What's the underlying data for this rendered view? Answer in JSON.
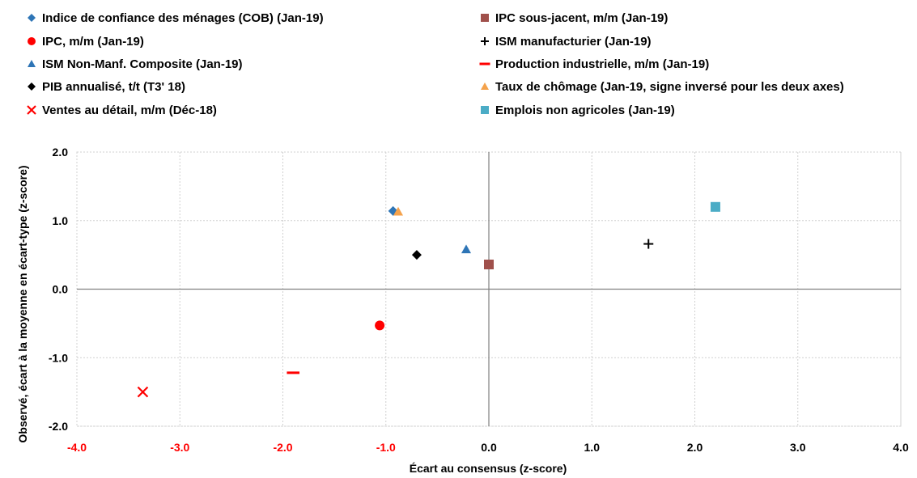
{
  "chart_data": {
    "type": "scatter",
    "xlabel": "Écart au consensus (z-score)",
    "ylabel": "Observé, écart à la moyenne en écart-type (z-score)",
    "xlim": [
      -4.0,
      4.0
    ],
    "ylim": [
      -2.0,
      2.0
    ],
    "x_ticks": [
      "-4.0",
      "-3.0",
      "-2.0",
      "-1.0",
      "0.0",
      "1.0",
      "2.0",
      "3.0",
      "4.0"
    ],
    "y_ticks": [
      "2.0",
      "1.0",
      "0.0",
      "-1.0",
      "-2.0"
    ],
    "grid": true,
    "legend_position": "top",
    "negative_tick_color": "#FF0000",
    "series": [
      {
        "name": "Indice de confiance des ménages (COB) (Jan-19)",
        "marker": "diamond",
        "color": "#2E75B6",
        "x": -0.93,
        "y": 1.14
      },
      {
        "name": "IPC sous-jacent, m/m (Jan-19)",
        "marker": "square",
        "color": "#A0504B",
        "x": 0.0,
        "y": 0.36
      },
      {
        "name": "IPC, m/m (Jan-19)",
        "marker": "circle",
        "color": "#FF0000",
        "x": -1.06,
        "y": -0.53
      },
      {
        "name": "ISM manufacturier (Jan-19)",
        "marker": "plus",
        "color": "#000000",
        "x": 1.55,
        "y": 0.66
      },
      {
        "name": "ISM Non-Manf. Composite (Jan-19)",
        "marker": "triangle",
        "color": "#2E75B6",
        "x": -0.22,
        "y": 0.58
      },
      {
        "name": "Production industrielle, m/m (Jan-19)",
        "marker": "dash",
        "color": "#FF0000",
        "x": -1.9,
        "y": -1.22
      },
      {
        "name": "PIB annualisé, t/t (T3' 18)",
        "marker": "diamond",
        "color": "#000000",
        "x": -0.7,
        "y": 0.5
      },
      {
        "name": "Taux de chômage (Jan-19, signe inversé pour les deux axes)",
        "marker": "triangle",
        "color": "#F4A24B",
        "x": -0.88,
        "y": 1.13
      },
      {
        "name": "Ventes au détail, m/m (Déc-18)",
        "marker": "x",
        "color": "#FF0000",
        "x": -3.36,
        "y": -1.5
      },
      {
        "name": "Emplois non agricoles (Jan-19)",
        "marker": "square",
        "color": "#4BACC6",
        "x": 2.2,
        "y": 1.2
      }
    ]
  }
}
